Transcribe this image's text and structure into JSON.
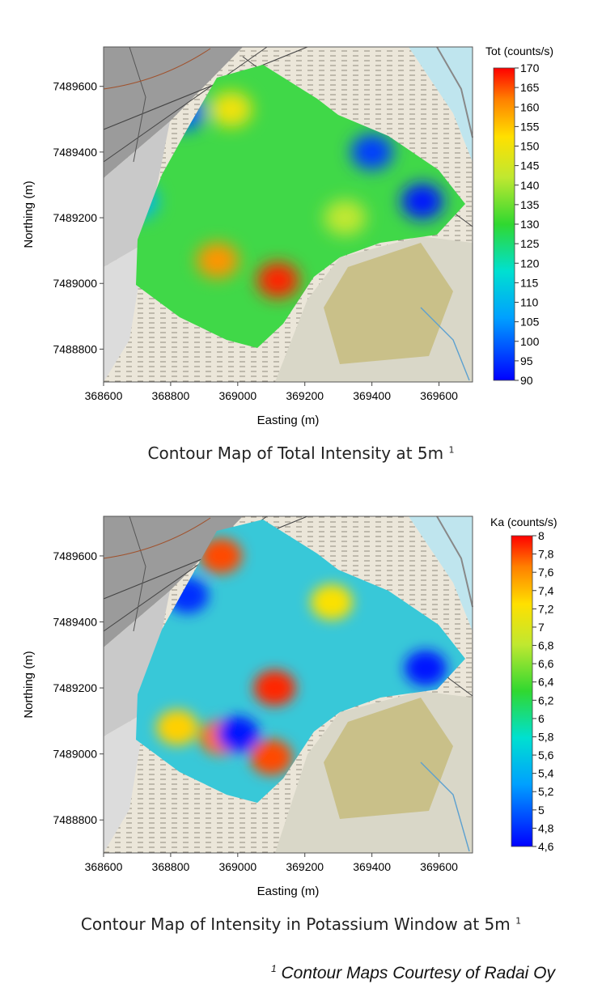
{
  "maps": [
    {
      "caption": "Contour Map of Total Intensity at 5m",
      "caption_ref": "1",
      "colorbar_title": "Tot (counts/s)",
      "colorbar_ticks": [
        "170",
        "165",
        "160",
        "155",
        "150",
        "145",
        "140",
        "135",
        "130",
        "125",
        "120",
        "115",
        "110",
        "105",
        "100",
        "95",
        "90"
      ],
      "xlabel": "Easting (m)",
      "ylabel": "Northing (m)",
      "x_ticks": [
        "368600",
        "368800",
        "369000",
        "369200",
        "369400",
        "369600"
      ],
      "y_ticks": [
        "7489600",
        "7489400",
        "7489200",
        "7489000",
        "7488800"
      ],
      "x_range": [
        368600,
        369700
      ],
      "y_range": [
        7488700,
        7489720
      ],
      "value_range": [
        90,
        170
      ],
      "hotspots": [
        {
          "x": 369120,
          "y": 7489010,
          "v": 168
        },
        {
          "x": 368940,
          "y": 7489070,
          "v": 160
        },
        {
          "x": 368980,
          "y": 7489530,
          "v": 150
        },
        {
          "x": 369320,
          "y": 7489200,
          "v": 142
        },
        {
          "x": 369550,
          "y": 7489250,
          "v": 92
        },
        {
          "x": 369400,
          "y": 7489400,
          "v": 96
        },
        {
          "x": 368840,
          "y": 7489520,
          "v": 100
        },
        {
          "x": 368700,
          "y": 7489250,
          "v": 110
        }
      ]
    },
    {
      "caption": "Contour Map of Intensity in Potassium Window at 5m",
      "caption_ref": "1",
      "colorbar_title": "Ka (counts/s)",
      "colorbar_ticks": [
        "8",
        "7,8",
        "7,6",
        "7,4",
        "7,2",
        "7",
        "6,8",
        "6,6",
        "6,4",
        "6,2",
        "6",
        "5,8",
        "5,6",
        "5,4",
        "5,2",
        "5",
        "4,8",
        "4,6"
      ],
      "xlabel": "Easting (m)",
      "ylabel": "Northing (m)",
      "x_ticks": [
        "368600",
        "368800",
        "369000",
        "369200",
        "369400",
        "369600"
      ],
      "y_ticks": [
        "7489600",
        "7489400",
        "7489200",
        "7489000",
        "7488800"
      ],
      "x_range": [
        368600,
        369700
      ],
      "y_range": [
        7488700,
        7489720
      ],
      "value_range": [
        4.5,
        8
      ],
      "hotspots": [
        {
          "x": 368950,
          "y": 7489600,
          "v": 7.8
        },
        {
          "x": 369110,
          "y": 7489200,
          "v": 7.9
        },
        {
          "x": 368950,
          "y": 7489050,
          "v": 7.7
        },
        {
          "x": 369100,
          "y": 7488990,
          "v": 7.8
        },
        {
          "x": 368820,
          "y": 7489080,
          "v": 7.3
        },
        {
          "x": 369000,
          "y": 7489060,
          "v": 4.6
        },
        {
          "x": 369560,
          "y": 7489260,
          "v": 4.6
        },
        {
          "x": 368850,
          "y": 7489480,
          "v": 4.7
        },
        {
          "x": 369280,
          "y": 7489460,
          "v": 7.2
        }
      ]
    }
  ],
  "credit": {
    "ref": "1",
    "text": "Contour Maps Courtesy of Radai Oy"
  }
}
